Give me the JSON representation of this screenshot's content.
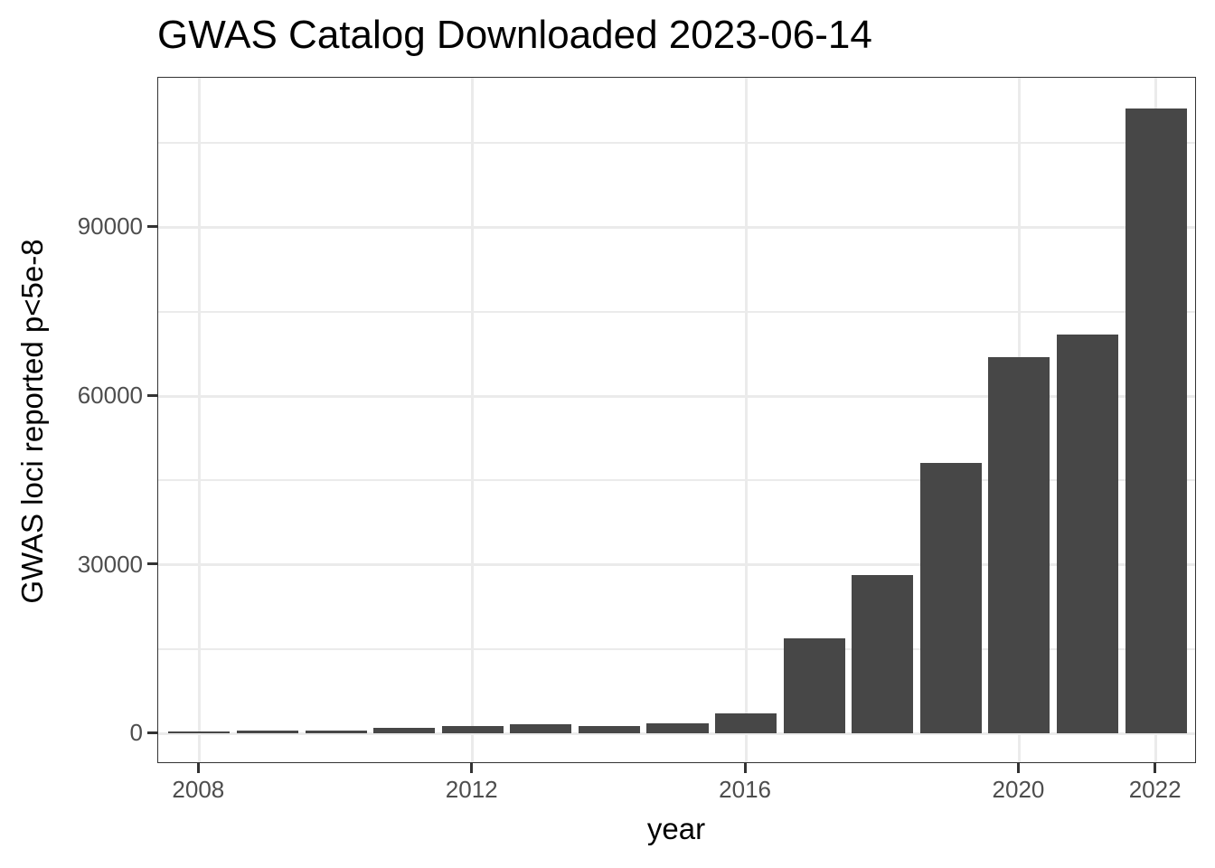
{
  "chart_data": {
    "type": "bar",
    "title": "GWAS Catalog Downloaded 2023-06-14",
    "xlabel": "year",
    "ylabel": "GWAS loci reported p<5e-8",
    "categories": [
      2008,
      2009,
      2010,
      2011,
      2012,
      2013,
      2014,
      2015,
      2016,
      2017,
      2018,
      2019,
      2020,
      2021,
      2022
    ],
    "values": [
      430,
      600,
      600,
      1080,
      1400,
      1720,
      1400,
      1880,
      3650,
      17000,
      28200,
      48200,
      67000,
      71000,
      111200
    ],
    "ylim": [
      -5400,
      116600
    ],
    "xlim": [
      2007.4,
      2022.6
    ],
    "y_ticks": [
      0,
      30000,
      60000,
      90000
    ],
    "y_minor_gridlines": [
      15000,
      45000,
      75000,
      105000
    ],
    "x_ticks": [
      2008,
      2012,
      2016,
      2020,
      2022
    ],
    "grid": true,
    "legend": null,
    "bar_color": "#474747",
    "theme": "bw"
  },
  "labels": {
    "title": "GWAS Catalog Downloaded 2023-06-14",
    "xlabel": "year",
    "ylabel": "GWAS loci reported p<5e-8",
    "y_ticks": [
      "0",
      "30000",
      "60000",
      "90000"
    ],
    "x_ticks": [
      "2008",
      "2012",
      "2016",
      "2020",
      "2022"
    ]
  }
}
